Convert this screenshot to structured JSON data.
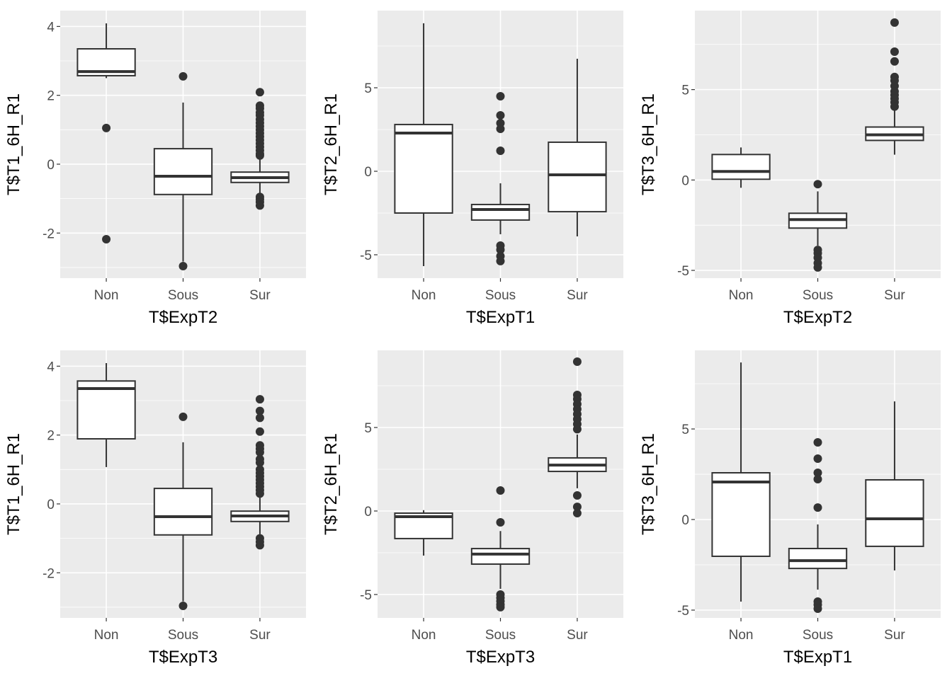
{
  "chart_data": [
    {
      "type": "box",
      "xlabel": "T$ExpT2",
      "ylabel": "T$T1_6H_R1",
      "categories": [
        "Non",
        "Sous",
        "Sur"
      ],
      "ylim": [
        -3.31,
        4.46
      ],
      "yticks": [
        -2,
        0,
        2,
        4
      ],
      "grid": true,
      "boxes": [
        {
          "category": "Non",
          "whisker_low": 2.5,
          "q1": 2.57,
          "median": 2.69,
          "q3": 3.35,
          "whisker_high": 4.09,
          "outliers": [
            1.05,
            -2.18
          ]
        },
        {
          "category": "Sous",
          "whisker_low": -2.83,
          "q1": -0.88,
          "median": -0.35,
          "q3": 0.45,
          "whisker_high": 1.79,
          "outliers": [
            2.55,
            -2.96
          ]
        },
        {
          "category": "Sur",
          "whisker_low": -0.88,
          "q1": -0.53,
          "median": -0.39,
          "q3": -0.23,
          "whisker_high": 0.14,
          "outliers": [
            2.09,
            1.7,
            1.62,
            1.5,
            1.42,
            1.3,
            1.2,
            1.1,
            1.0,
            0.9,
            0.8,
            0.7,
            0.6,
            0.5,
            0.4,
            0.3,
            0.25,
            -0.95,
            -1.02,
            -1.1,
            -1.2
          ]
        }
      ]
    },
    {
      "type": "box",
      "xlabel": "T$ExpT1",
      "ylabel": "T$T2_6H_R1",
      "categories": [
        "Non",
        "Sous",
        "Sur"
      ],
      "ylim": [
        -6.4,
        9.62
      ],
      "yticks": [
        -5,
        0,
        5
      ],
      "grid": true,
      "boxes": [
        {
          "category": "Non",
          "whisker_low": -5.68,
          "q1": -2.5,
          "median": 2.29,
          "q3": 2.8,
          "whisker_high": 8.86,
          "outliers": []
        },
        {
          "category": "Sous",
          "whisker_low": -3.77,
          "q1": -2.92,
          "median": -2.29,
          "q3": -1.99,
          "whisker_high": -0.72,
          "outliers": [
            4.49,
            3.35,
            2.88,
            2.54,
            1.23,
            -4.45,
            -4.7,
            -5.08,
            -5.38
          ]
        },
        {
          "category": "Sur",
          "whisker_low": -3.9,
          "q1": -2.42,
          "median": -0.21,
          "q3": 1.74,
          "whisker_high": 6.74,
          "outliers": []
        }
      ]
    },
    {
      "type": "box",
      "xlabel": "T$ExpT2",
      "ylabel": "T$T3_6H_R1",
      "categories": [
        "Non",
        "Sous",
        "Sur"
      ],
      "ylim": [
        -5.43,
        9.37
      ],
      "yticks": [
        -5,
        0,
        5
      ],
      "grid": true,
      "boxes": [
        {
          "category": "Non",
          "whisker_low": -0.43,
          "q1": 0.04,
          "median": 0.47,
          "q3": 1.41,
          "whisker_high": 1.8,
          "outliers": []
        },
        {
          "category": "Sous",
          "whisker_low": -3.63,
          "q1": -2.66,
          "median": -2.19,
          "q3": -1.84,
          "whisker_high": -0.63,
          "outliers": [
            -0.23,
            -3.87,
            -4.05,
            -4.3,
            -4.6,
            -4.84
          ]
        },
        {
          "category": "Sur",
          "whisker_low": 1.4,
          "q1": 2.19,
          "median": 2.5,
          "q3": 2.93,
          "whisker_high": 3.9,
          "outliers": [
            8.71,
            7.1,
            6.56,
            5.7,
            5.5,
            5.2,
            4.9,
            4.7,
            4.5,
            4.3,
            4.06
          ]
        }
      ]
    },
    {
      "type": "box",
      "xlabel": "T$ExpT3",
      "ylabel": "T$T1_6H_R1",
      "categories": [
        "Non",
        "Sous",
        "Sur"
      ],
      "ylim": [
        -3.31,
        4.46
      ],
      "yticks": [
        -2,
        0,
        2,
        4
      ],
      "grid": true,
      "boxes": [
        {
          "category": "Non",
          "whisker_low": 1.07,
          "q1": 1.89,
          "median": 3.35,
          "q3": 3.57,
          "whisker_high": 4.09,
          "outliers": []
        },
        {
          "category": "Sous",
          "whisker_low": -2.83,
          "q1": -0.9,
          "median": -0.37,
          "q3": 0.45,
          "whisker_high": 1.79,
          "outliers": [
            2.53,
            -2.96
          ]
        },
        {
          "category": "Sur",
          "whisker_low": -0.88,
          "q1": -0.51,
          "median": -0.35,
          "q3": -0.21,
          "whisker_high": 0.25,
          "outliers": [
            3.04,
            2.7,
            2.5,
            2.1,
            1.7,
            1.6,
            1.5,
            1.3,
            1.2,
            1.0,
            0.9,
            0.8,
            0.7,
            0.6,
            0.5,
            0.4,
            0.3,
            -1.0,
            -1.1,
            -1.2
          ]
        }
      ]
    },
    {
      "type": "box",
      "xlabel": "T$ExpT3",
      "ylabel": "T$T2_6H_R1",
      "categories": [
        "Non",
        "Sous",
        "Sur"
      ],
      "ylim": [
        -6.4,
        9.62
      ],
      "yticks": [
        -5,
        0,
        5
      ],
      "grid": true,
      "boxes": [
        {
          "category": "Non",
          "whisker_low": -2.67,
          "q1": -1.65,
          "median": -0.34,
          "q3": -0.13,
          "whisker_high": 0.05,
          "outliers": []
        },
        {
          "category": "Sous",
          "whisker_low": -4.66,
          "q1": -3.18,
          "median": -2.58,
          "q3": -2.25,
          "whisker_high": -1.2,
          "outliers": [
            1.23,
            -0.68,
            -5.0,
            -5.2,
            -5.4,
            -5.6,
            -5.76
          ]
        },
        {
          "category": "Sur",
          "whisker_low": 1.36,
          "q1": 2.37,
          "median": 2.75,
          "q3": 3.18,
          "whisker_high": 4.58,
          "outliers": [
            8.94,
            6.95,
            6.7,
            6.4,
            6.1,
            5.8,
            5.5,
            5.2,
            4.9,
            0.93,
            0.25,
            -0.13
          ]
        }
      ]
    },
    {
      "type": "box",
      "xlabel": "T$ExpT1",
      "ylabel": "T$T3_6H_R1",
      "categories": [
        "Non",
        "Sous",
        "Sur"
      ],
      "ylim": [
        -5.43,
        9.34
      ],
      "yticks": [
        -5,
        0,
        5
      ],
      "grid": true,
      "boxes": [
        {
          "category": "Non",
          "whisker_low": -4.53,
          "q1": -2.03,
          "median": 2.07,
          "q3": 2.58,
          "whisker_high": 8.67,
          "outliers": []
        },
        {
          "category": "Sous",
          "whisker_low": -3.87,
          "q1": -2.7,
          "median": -2.27,
          "q3": -1.6,
          "whisker_high": -0.27,
          "outliers": [
            4.26,
            3.36,
            2.58,
            2.23,
            0.66,
            -4.53,
            -4.7,
            -4.92
          ]
        },
        {
          "category": "Sur",
          "whisker_low": -2.81,
          "q1": -1.48,
          "median": 0.04,
          "q3": 2.19,
          "whisker_high": 6.52,
          "outliers": []
        }
      ]
    }
  ]
}
